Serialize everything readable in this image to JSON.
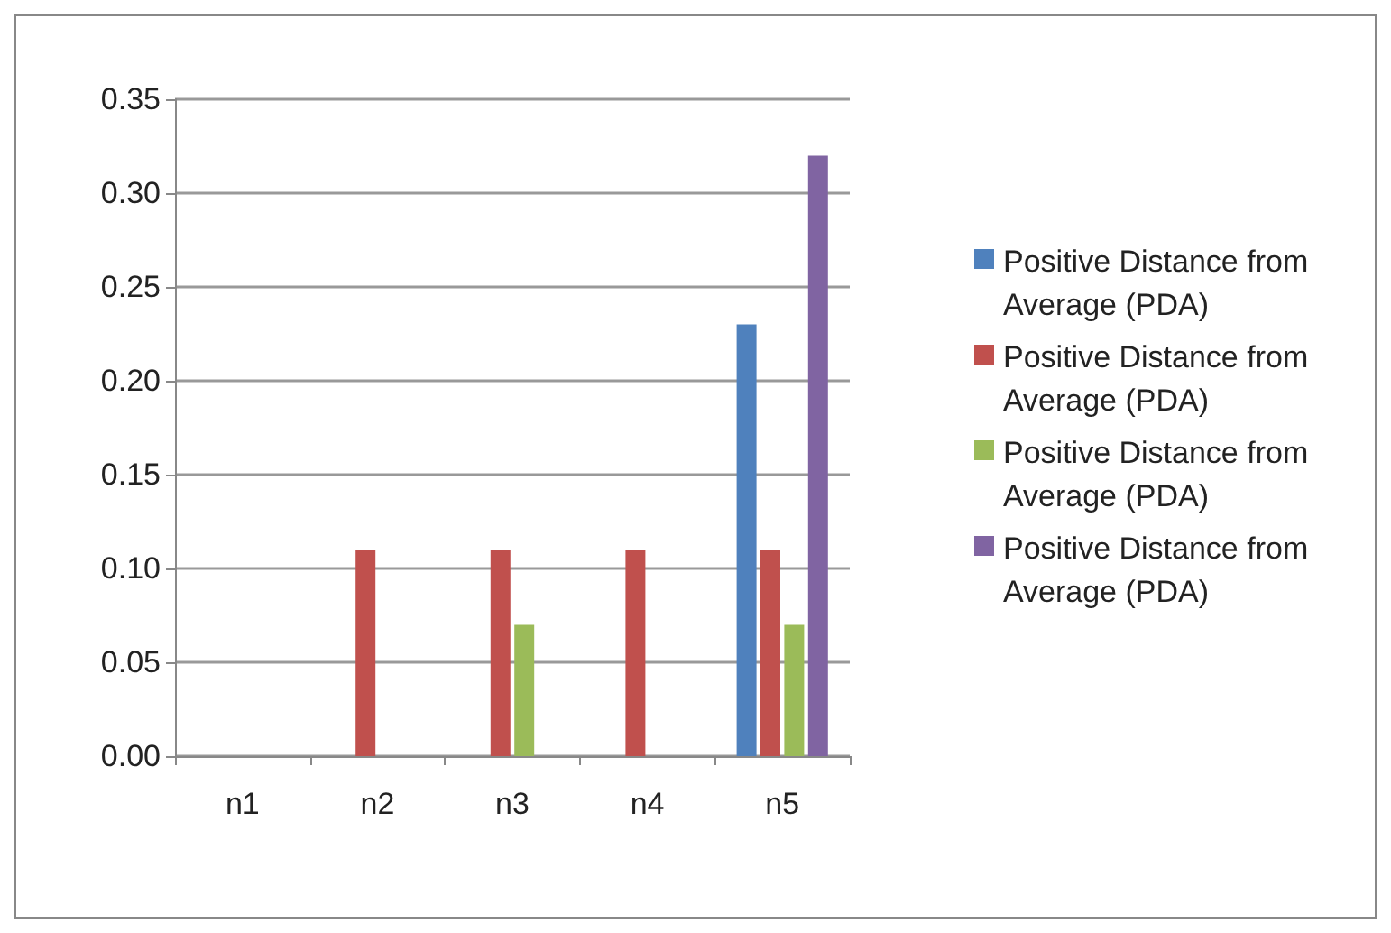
{
  "chart_data": {
    "type": "bar",
    "categories": [
      "n1",
      "n2",
      "n3",
      "n4",
      "n5"
    ],
    "series": [
      {
        "name": "Positive Distance from Average (PDA)",
        "color": "#4f81bd",
        "values": [
          0,
          0,
          0,
          0,
          0.23
        ]
      },
      {
        "name": "Positive Distance from Average (PDA)",
        "color": "#c0504d",
        "values": [
          0,
          0.11,
          0.11,
          0.11,
          0.11
        ]
      },
      {
        "name": "Positive Distance from Average (PDA)",
        "color": "#9bbb59",
        "values": [
          0,
          0,
          0.07,
          0,
          0.07
        ]
      },
      {
        "name": "Positive Distance from Average (PDA)",
        "color": "#8064a2",
        "values": [
          0,
          0,
          0,
          0,
          0.32
        ]
      }
    ],
    "ylim": [
      0,
      0.35
    ],
    "yticks": [
      {
        "value": 0,
        "label": "0.00"
      },
      {
        "value": 0.05,
        "label": "0.05"
      },
      {
        "value": 0.1,
        "label": "0.10"
      },
      {
        "value": 0.15,
        "label": "0.15"
      },
      {
        "value": 0.2,
        "label": "0.20"
      },
      {
        "value": 0.25,
        "label": "0.25"
      },
      {
        "value": 0.3,
        "label": "0.30"
      },
      {
        "value": 0.35,
        "label": "0.35"
      }
    ],
    "grid": "y",
    "legend": "right"
  }
}
